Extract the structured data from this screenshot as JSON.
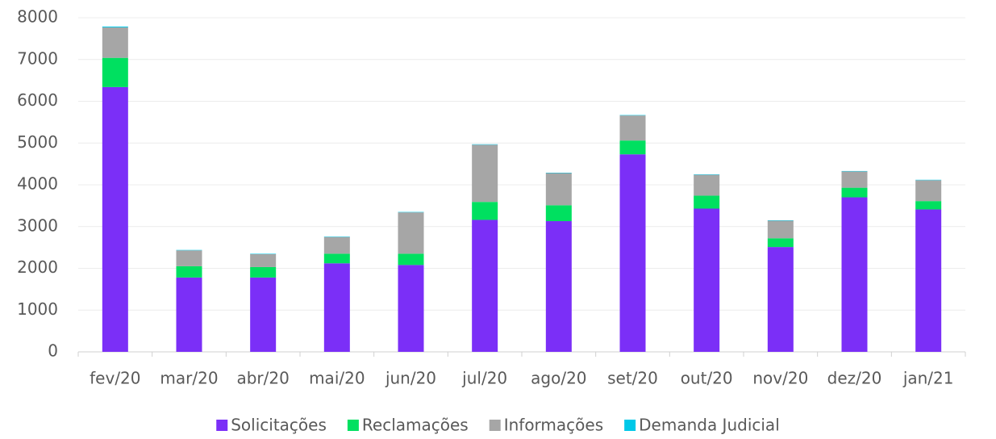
{
  "chart_data": {
    "type": "stacked_bar",
    "categories": [
      "fev/20",
      "mar/20",
      "abr/20",
      "mai/20",
      "jun/20",
      "jul/20",
      "ago/20",
      "set/20",
      "out/20",
      "nov/20",
      "dez/20",
      "jan/21"
    ],
    "series": [
      {
        "name": "Solicitações",
        "color": "#7b2ff7",
        "values": [
          6340,
          1780,
          1780,
          2120,
          2080,
          3160,
          3130,
          4730,
          3430,
          2510,
          3700,
          3410
        ]
      },
      {
        "name": "Reclamações",
        "color": "#00e060",
        "values": [
          700,
          270,
          250,
          230,
          270,
          430,
          380,
          330,
          310,
          210,
          230,
          200
        ]
      },
      {
        "name": "Informações",
        "color": "#a6a6a6",
        "values": [
          730,
          380,
          310,
          400,
          990,
          1370,
          770,
          600,
          500,
          420,
          390,
          500
        ]
      },
      {
        "name": "Demanda Judicial",
        "color": "#00c8e8",
        "values": [
          20,
          10,
          10,
          10,
          10,
          10,
          10,
          10,
          10,
          10,
          10,
          10
        ]
      }
    ],
    "ylim": [
      0,
      8000
    ],
    "yticks": [
      0,
      1000,
      2000,
      3000,
      4000,
      5000,
      6000,
      7000,
      8000
    ],
    "grid": true,
    "legend": "bottom"
  }
}
